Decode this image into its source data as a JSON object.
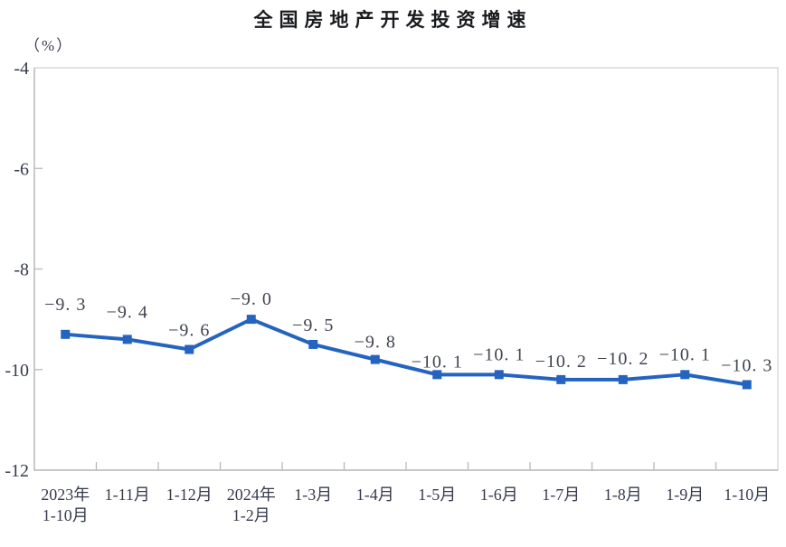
{
  "chart_data": {
    "type": "line",
    "title": "全国房地产开发投资增速",
    "unit_label": "（%）",
    "categories": [
      "2023年\n1-10月",
      "1-11月",
      "1-12月",
      "2024年\n1-2月",
      "1-3月",
      "1-4月",
      "1-5月",
      "1-6月",
      "1-7月",
      "1-8月",
      "1-9月",
      "1-10月"
    ],
    "values": [
      -9.3,
      -9.4,
      -9.6,
      -9.0,
      -9.5,
      -9.8,
      -10.1,
      -10.1,
      -10.2,
      -10.2,
      -10.1,
      -10.3
    ],
    "data_labels": [
      "−9. 3",
      "−9. 4",
      "−9. 6",
      "−9. 0",
      "−9. 5",
      "−9. 8",
      "−10. 1",
      "−10. 1",
      "−10. 2",
      "−10. 2",
      "−10. 1",
      "−10. 3"
    ],
    "ylim": [
      -12,
      -4
    ],
    "yticks": [
      -4,
      -6,
      -8,
      -10,
      -12
    ],
    "ytick_labels": [
      "-4",
      "-6",
      "-8",
      "-10",
      "-12"
    ],
    "xlabel": "",
    "ylabel": "（%）",
    "grid": "off",
    "legend": "none",
    "marker": "square",
    "line_color": "#2463c0",
    "marker_color": "#2463c0",
    "axis_color": "#b9b9b9",
    "border_color": "#d4d4d4",
    "tick_text_color": "#373b4c",
    "data_label_color": "#41444e"
  }
}
